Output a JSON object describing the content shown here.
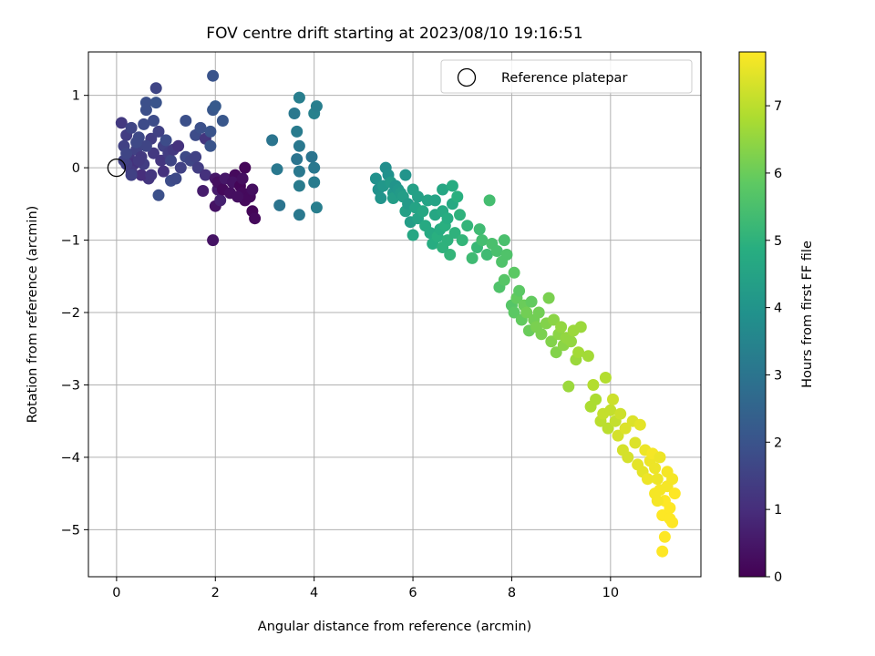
{
  "chart_data": {
    "type": "scatter",
    "title": "FOV centre drift starting at 2023/08/10 19:16:51",
    "xlabel": "Angular distance from reference (arcmin)",
    "ylabel": "Rotation from reference (arcmin)",
    "xlim": [
      -0.57,
      11.83
    ],
    "ylim": [
      -5.65,
      1.6
    ],
    "xticks": [
      0,
      2,
      4,
      6,
      8,
      10
    ],
    "yticks": [
      1,
      0,
      -1,
      -2,
      -3,
      -4,
      -5
    ],
    "xtick_labels": [
      "0",
      "2",
      "4",
      "6",
      "8",
      "10"
    ],
    "ytick_labels": [
      "1",
      "0",
      "−1",
      "−2",
      "−3",
      "−4",
      "−5"
    ],
    "grid": true,
    "colormap": "viridis",
    "colorbar": {
      "label": "Hours from first FF file",
      "range": [
        0,
        7.8
      ],
      "ticks": [
        0,
        1,
        2,
        3,
        4,
        5,
        6,
        7
      ],
      "tick_labels": [
        "0",
        "1",
        "2",
        "3",
        "4",
        "5",
        "6",
        "7"
      ]
    },
    "legend": {
      "position": "top-right",
      "entries": [
        "Reference platepar"
      ]
    },
    "reference_point": {
      "x": 0,
      "y": 0
    },
    "points": [
      [
        0.1,
        0.62,
        1.3
      ],
      [
        0.2,
        0.45,
        1.4
      ],
      [
        0.3,
        0.55,
        1.6
      ],
      [
        0.15,
        0.3,
        1.5
      ],
      [
        0.25,
        0.15,
        1.2
      ],
      [
        0.35,
        0.05,
        1.1
      ],
      [
        0.4,
        0.25,
        1.5
      ],
      [
        0.45,
        0.42,
        1.7
      ],
      [
        0.55,
        0.6,
        1.8
      ],
      [
        0.6,
        0.9,
        1.9
      ],
      [
        0.8,
        1.1,
        1.6
      ],
      [
        0.8,
        0.9,
        2.0
      ],
      [
        0.7,
        0.4,
        1.4
      ],
      [
        0.75,
        0.2,
        1.3
      ],
      [
        0.85,
        0.5,
        1.5
      ],
      [
        0.9,
        0.1,
        1.2
      ],
      [
        0.95,
        -0.05,
        1.1
      ],
      [
        0.65,
        -0.15,
        1.2
      ],
      [
        0.5,
        -0.1,
        1.0
      ],
      [
        0.3,
        -0.05,
        1.3
      ],
      [
        0.2,
        0.05,
        1.4
      ],
      [
        0.6,
        0.3,
        1.6
      ],
      [
        0.5,
        0.15,
        1.3
      ],
      [
        0.7,
        -0.1,
        1.2
      ],
      [
        0.85,
        -0.38,
        1.9
      ],
      [
        0.75,
        0.65,
        1.8
      ],
      [
        0.4,
        0.35,
        1.7
      ],
      [
        0.15,
        0.1,
        1.5
      ],
      [
        0.55,
        0.05,
        1.4
      ],
      [
        0.95,
        0.3,
        1.5
      ],
      [
        1.05,
        0.2,
        1.4
      ],
      [
        1.1,
        0.1,
        1.6
      ],
      [
        1.0,
        0.38,
        1.8
      ],
      [
        1.15,
        0.25,
        1.3
      ],
      [
        1.25,
        0.3,
        1.1
      ],
      [
        1.4,
        0.65,
        1.9
      ],
      [
        1.4,
        0.15,
        1.7
      ],
      [
        1.6,
        0.45,
        1.8
      ],
      [
        1.7,
        0.55,
        1.9
      ],
      [
        1.8,
        0.4,
        1.2
      ],
      [
        1.9,
        0.5,
        2.0
      ],
      [
        1.9,
        0.3,
        2.0
      ],
      [
        1.95,
        0.8,
        2.1
      ],
      [
        2.0,
        0.85,
        2.2
      ],
      [
        1.95,
        1.27,
        2.0
      ],
      [
        2.15,
        0.65,
        2.1
      ],
      [
        1.1,
        -0.18,
        1.8
      ],
      [
        1.2,
        -0.15,
        1.7
      ],
      [
        1.3,
        0.0,
        1.5
      ],
      [
        1.5,
        0.1,
        1.6
      ],
      [
        1.6,
        0.15,
        1.5
      ],
      [
        1.65,
        0.0,
        1.4
      ],
      [
        1.8,
        -0.1,
        1.1
      ],
      [
        1.75,
        -0.32,
        0.6
      ],
      [
        1.95,
        -1.0,
        0.4
      ],
      [
        2.0,
        -0.15,
        0.5
      ],
      [
        2.05,
        -0.3,
        0.6
      ],
      [
        2.0,
        -0.53,
        0.4
      ],
      [
        2.1,
        -0.45,
        0.7
      ],
      [
        2.05,
        -0.2,
        0.3
      ],
      [
        2.15,
        -0.3,
        0.2
      ],
      [
        2.2,
        -0.15,
        0.5
      ],
      [
        2.3,
        -0.35,
        0.3
      ],
      [
        2.4,
        -0.1,
        0.2
      ],
      [
        2.35,
        -0.2,
        0.4
      ],
      [
        2.5,
        -0.25,
        0.1
      ],
      [
        2.55,
        -0.35,
        0.2
      ],
      [
        2.6,
        0.0,
        0.1
      ],
      [
        2.55,
        -0.15,
        0.3
      ],
      [
        2.7,
        -0.4,
        0.2
      ],
      [
        2.75,
        -0.3,
        0.3
      ],
      [
        2.75,
        -0.6,
        0.1
      ],
      [
        2.8,
        -0.7,
        0.2
      ],
      [
        2.6,
        -0.45,
        0.2
      ],
      [
        2.45,
        -0.4,
        0.3
      ],
      [
        0.2,
        0.2,
        1.6
      ],
      [
        0.3,
        -0.1,
        1.5
      ],
      [
        0.6,
        0.8,
        1.9
      ],
      [
        0.45,
        0.1,
        1.3
      ],
      [
        3.15,
        0.38,
        3.0
      ],
      [
        3.25,
        -0.02,
        3.1
      ],
      [
        3.3,
        -0.52,
        3.0
      ],
      [
        3.6,
        0.75,
        3.1
      ],
      [
        3.65,
        0.5,
        3.2
      ],
      [
        3.7,
        0.3,
        3.1
      ],
      [
        3.7,
        0.97,
        3.3
      ],
      [
        3.65,
        0.12,
        3.0
      ],
      [
        3.7,
        -0.05,
        3.1
      ],
      [
        3.7,
        -0.25,
        3.2
      ],
      [
        3.7,
        -0.65,
        3.1
      ],
      [
        3.95,
        0.15,
        3.0
      ],
      [
        4.0,
        0.0,
        3.1
      ],
      [
        4.0,
        -0.2,
        3.2
      ],
      [
        4.05,
        -0.55,
        3.3
      ],
      [
        4.0,
        0.75,
        3.4
      ],
      [
        4.05,
        0.85,
        3.3
      ],
      [
        5.25,
        -0.15,
        3.9
      ],
      [
        5.3,
        -0.3,
        3.9
      ],
      [
        5.35,
        -0.42,
        4.0
      ],
      [
        5.4,
        -0.25,
        4.1
      ],
      [
        5.45,
        0.0,
        3.8
      ],
      [
        5.5,
        -0.1,
        3.9
      ],
      [
        5.55,
        -0.2,
        4.2
      ],
      [
        5.6,
        -0.35,
        4.1
      ],
      [
        5.6,
        -0.42,
        4.3
      ],
      [
        5.65,
        -0.25,
        4.0
      ],
      [
        5.7,
        -0.3,
        4.1
      ],
      [
        5.75,
        -0.35,
        4.2
      ],
      [
        5.8,
        -0.4,
        4.3
      ],
      [
        5.85,
        -0.6,
        4.4
      ],
      [
        5.9,
        -0.5,
        4.2
      ],
      [
        5.95,
        -0.75,
        4.3
      ],
      [
        6.0,
        -0.3,
        4.4
      ],
      [
        6.05,
        -0.55,
        4.5
      ],
      [
        6.1,
        -0.4,
        4.4
      ],
      [
        5.85,
        -0.1,
        4.0
      ],
      [
        6.0,
        -0.93,
        4.6
      ],
      [
        6.1,
        -0.7,
        4.5
      ],
      [
        6.2,
        -0.6,
        4.6
      ],
      [
        6.25,
        -0.8,
        4.7
      ],
      [
        6.3,
        -0.45,
        4.5
      ],
      [
        6.35,
        -0.9,
        4.7
      ],
      [
        6.4,
        -1.05,
        4.8
      ],
      [
        6.45,
        -0.65,
        4.6
      ],
      [
        6.45,
        -0.45,
        4.5
      ],
      [
        6.5,
        -0.95,
        4.9
      ],
      [
        6.55,
        -0.85,
        4.8
      ],
      [
        6.6,
        -0.6,
        4.7
      ],
      [
        6.6,
        -0.3,
        4.6
      ],
      [
        6.65,
        -0.8,
        4.9
      ],
      [
        6.7,
        -1.0,
        5.0
      ],
      [
        6.7,
        -0.7,
        4.8
      ],
      [
        6.75,
        -1.2,
        5.1
      ],
      [
        6.8,
        -0.5,
        4.7
      ],
      [
        6.85,
        -0.9,
        5.0
      ],
      [
        6.9,
        -0.4,
        4.9
      ],
      [
        6.95,
        -0.65,
        5.0
      ],
      [
        7.0,
        -1.0,
        5.1
      ],
      [
        6.8,
        -0.25,
        4.8
      ],
      [
        6.6,
        -1.1,
        5.0
      ],
      [
        7.1,
        -0.8,
        5.1
      ],
      [
        7.2,
        -1.25,
        5.3
      ],
      [
        7.3,
        -1.1,
        5.2
      ],
      [
        7.35,
        -0.85,
        5.3
      ],
      [
        7.4,
        -1.0,
        5.4
      ],
      [
        7.5,
        -1.2,
        5.3
      ],
      [
        7.55,
        -0.45,
        5.4
      ],
      [
        7.6,
        -1.05,
        5.5
      ],
      [
        7.7,
        -1.15,
        5.5
      ],
      [
        7.75,
        -1.65,
        5.6
      ],
      [
        7.8,
        -1.3,
        5.6
      ],
      [
        7.85,
        -1.0,
        5.5
      ],
      [
        7.85,
        -1.55,
        5.7
      ],
      [
        7.9,
        -1.2,
        5.6
      ],
      [
        8.05,
        -1.45,
        5.8
      ],
      [
        8.0,
        -1.9,
        5.7
      ],
      [
        8.05,
        -2.0,
        5.8
      ],
      [
        8.1,
        -1.8,
        5.9
      ],
      [
        8.15,
        -1.7,
        5.8
      ],
      [
        8.2,
        -2.1,
        5.9
      ],
      [
        8.25,
        -1.9,
        6.0
      ],
      [
        8.3,
        -2.0,
        6.1
      ],
      [
        8.35,
        -2.25,
        6.0
      ],
      [
        8.4,
        -1.85,
        5.9
      ],
      [
        8.45,
        -2.1,
        6.1
      ],
      [
        8.5,
        -2.2,
        6.2
      ],
      [
        8.55,
        -2.0,
        6.1
      ],
      [
        8.6,
        -2.3,
        6.2
      ],
      [
        8.7,
        -2.15,
        6.3
      ],
      [
        8.75,
        -1.8,
        6.2
      ],
      [
        8.8,
        -2.4,
        6.3
      ],
      [
        8.85,
        -2.1,
        6.4
      ],
      [
        8.9,
        -2.55,
        6.3
      ],
      [
        8.95,
        -2.3,
        6.4
      ],
      [
        9.0,
        -2.2,
        6.5
      ],
      [
        9.05,
        -2.45,
        6.4
      ],
      [
        9.1,
        -2.35,
        6.5
      ],
      [
        9.15,
        -3.02,
        6.6
      ],
      [
        9.2,
        -2.4,
        6.5
      ],
      [
        9.25,
        -2.25,
        6.6
      ],
      [
        9.3,
        -2.65,
        6.6
      ],
      [
        9.35,
        -2.55,
        6.7
      ],
      [
        9.4,
        -2.2,
        6.6
      ],
      [
        9.55,
        -2.6,
        6.7
      ],
      [
        9.6,
        -3.3,
        6.8
      ],
      [
        9.65,
        -3.0,
        6.9
      ],
      [
        9.7,
        -3.2,
        6.8
      ],
      [
        9.8,
        -3.5,
        7.0
      ],
      [
        9.85,
        -3.4,
        7.1
      ],
      [
        9.9,
        -2.9,
        6.9
      ],
      [
        9.95,
        -3.6,
        7.0
      ],
      [
        10.0,
        -3.35,
        7.1
      ],
      [
        10.05,
        -3.2,
        7.2
      ],
      [
        10.1,
        -3.5,
        7.1
      ],
      [
        10.15,
        -3.7,
        7.3
      ],
      [
        10.2,
        -3.4,
        7.2
      ],
      [
        10.25,
        -3.9,
        7.3
      ],
      [
        10.3,
        -3.6,
        7.4
      ],
      [
        10.35,
        -4.0,
        7.3
      ],
      [
        10.45,
        -3.5,
        7.4
      ],
      [
        10.5,
        -3.8,
        7.4
      ],
      [
        10.55,
        -4.1,
        7.5
      ],
      [
        10.6,
        -3.55,
        7.5
      ],
      [
        10.65,
        -4.2,
        7.5
      ],
      [
        10.7,
        -3.9,
        7.6
      ],
      [
        10.75,
        -4.3,
        7.6
      ],
      [
        10.8,
        -4.05,
        7.6
      ],
      [
        10.85,
        -3.95,
        7.7
      ],
      [
        10.9,
        -4.5,
        7.7
      ],
      [
        10.95,
        -4.3,
        7.6
      ],
      [
        11.0,
        -4.45,
        7.7
      ],
      [
        11.05,
        -4.8,
        7.8
      ],
      [
        11.05,
        -5.3,
        7.8
      ],
      [
        11.1,
        -4.6,
        7.8
      ],
      [
        11.1,
        -5.1,
        7.8
      ],
      [
        11.15,
        -4.4,
        7.7
      ],
      [
        11.2,
        -4.7,
        7.8
      ],
      [
        11.25,
        -4.9,
        7.8
      ],
      [
        11.25,
        -4.3,
        7.7
      ],
      [
        11.3,
        -4.5,
        7.8
      ],
      [
        10.95,
        -4.6,
        7.7
      ],
      [
        11.15,
        -4.2,
        7.7
      ],
      [
        11.0,
        -4.0,
        7.6
      ],
      [
        10.9,
        -4.15,
        7.6
      ],
      [
        11.2,
        -4.85,
        7.8
      ]
    ]
  }
}
